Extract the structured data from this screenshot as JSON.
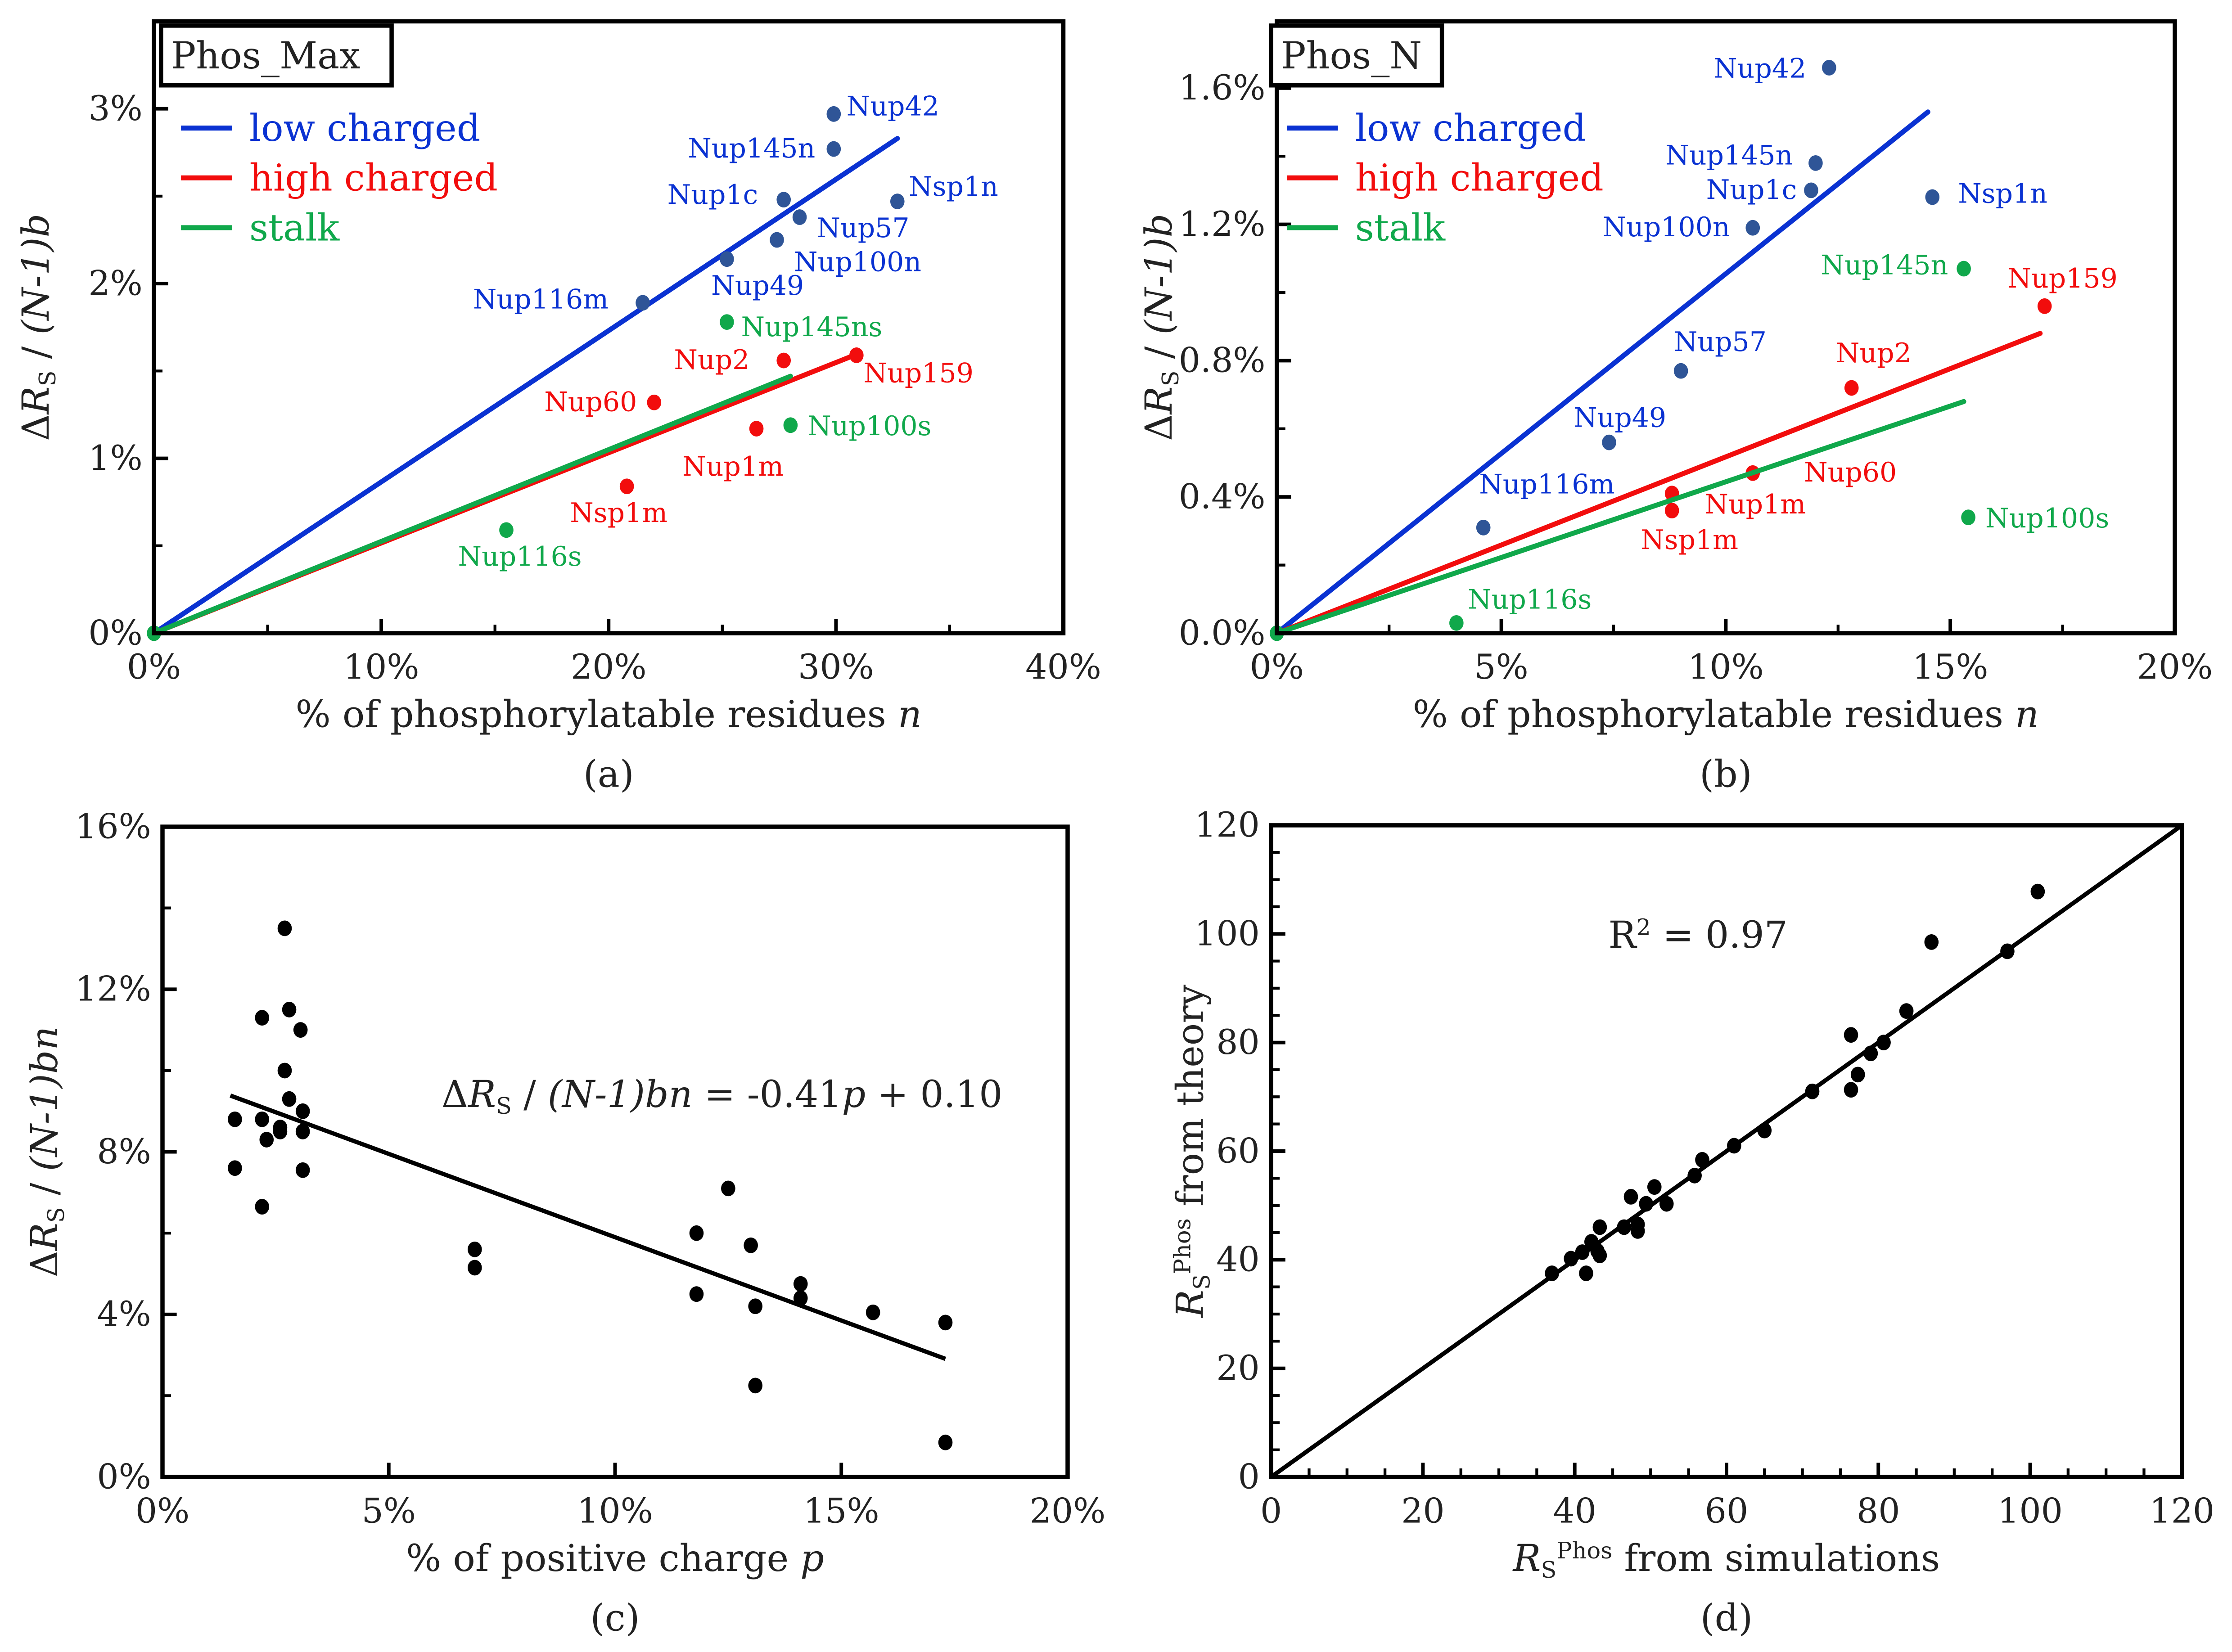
{
  "chart_data": [
    {
      "id": "a",
      "type": "scatter",
      "caption": "(a)",
      "title": "Phos_Max",
      "xlim": [
        0,
        40
      ],
      "ylim": [
        0,
        3.5
      ],
      "xticks": [
        0,
        10,
        20,
        30,
        40
      ],
      "xminor": 5,
      "yticks": [
        0,
        1,
        2,
        3
      ],
      "yminor": 0.5,
      "tick_suffix": "%",
      "xlabel_parts": [
        {
          "t": "% of phosphorylatable residues "
        },
        {
          "t": "n",
          "i": 1
        }
      ],
      "ylabel_parts": [
        {
          "t": "Δ"
        },
        {
          "t": "R",
          "i": 1
        },
        {
          "t": "S",
          "sub": 1
        },
        {
          "t": " / "
        },
        {
          "t": "(N-1)b",
          "i": 1
        }
      ],
      "legend": [
        {
          "label": "low charged",
          "color": "#0a32d2"
        },
        {
          "label": "high charged",
          "color": "#f20d0d"
        },
        {
          "label": "stalk",
          "color": "#10a84b"
        }
      ],
      "series": [
        {
          "name": "low charged",
          "color": "#0a32d2",
          "point_color": "#2f5597",
          "fit_end": [
            32.7,
            2.83
          ],
          "points": [
            {
              "name": "Nup42",
              "x": 29.9,
              "y": 2.97
            },
            {
              "name": "Nup145n",
              "x": 29.9,
              "y": 2.77
            },
            {
              "name": "Nup1c",
              "x": 27.7,
              "y": 2.48
            },
            {
              "name": "Nsp1n",
              "x": 32.7,
              "y": 2.47
            },
            {
              "name": "Nup57",
              "x": 28.4,
              "y": 2.38
            },
            {
              "name": "Nup100n",
              "x": 27.4,
              "y": 2.25
            },
            {
              "name": "Nup49",
              "x": 25.2,
              "y": 2.14
            },
            {
              "name": "Nup116m",
              "x": 21.5,
              "y": 1.89
            }
          ]
        },
        {
          "name": "high charged",
          "color": "#f20d0d",
          "point_color": "#f20d0d",
          "fit_end": [
            31.0,
            1.6
          ],
          "points": [
            {
              "name": "Nup2",
              "x": 27.7,
              "y": 1.56
            },
            {
              "name": "Nup159",
              "x": 30.9,
              "y": 1.59
            },
            {
              "name": "Nup60",
              "x": 22.0,
              "y": 1.32
            },
            {
              "name": "Nup1m",
              "x": 26.5,
              "y": 1.17
            },
            {
              "name": "Nsp1m",
              "x": 20.8,
              "y": 0.84
            }
          ]
        },
        {
          "name": "stalk",
          "color": "#10a84b",
          "point_color": "#10a84b",
          "fit_end": [
            28.0,
            1.47
          ],
          "points": [
            {
              "name": "Nup145ns",
              "x": 25.2,
              "y": 1.78
            },
            {
              "name": "Nup100s",
              "x": 28.0,
              "y": 1.19
            },
            {
              "name": "Nup116s",
              "x": 15.5,
              "y": 0.59
            },
            {
              "name": "",
              "x": 0,
              "y": 0
            }
          ]
        }
      ]
    },
    {
      "id": "b",
      "type": "scatter",
      "caption": "(b)",
      "title": "Phos_N",
      "xlim": [
        0,
        20
      ],
      "ylim": [
        0,
        1.796
      ],
      "xticks": [
        0,
        5,
        10,
        15,
        20
      ],
      "xminor": 2.5,
      "yticks": [
        0,
        0.4,
        0.8,
        1.2,
        1.6
      ],
      "yminor": 0.2,
      "tick_suffix": "%",
      "ytick_decimals": 1,
      "xlabel_parts": [
        {
          "t": "% of phosphorylatable residues "
        },
        {
          "t": "n",
          "i": 1
        }
      ],
      "ylabel_parts": [
        {
          "t": "Δ"
        },
        {
          "t": "R",
          "i": 1
        },
        {
          "t": "S",
          "sub": 1
        },
        {
          "t": " / "
        },
        {
          "t": "(N-1)b",
          "i": 1
        }
      ],
      "legend": [
        {
          "label": "low charged",
          "color": "#0a32d2"
        },
        {
          "label": "high charged",
          "color": "#f20d0d"
        },
        {
          "label": "stalk",
          "color": "#10a84b"
        }
      ],
      "series": [
        {
          "name": "low charged",
          "color": "#0a32d2",
          "point_color": "#2f5597",
          "fit_end": [
            14.5,
            1.53
          ],
          "points": [
            {
              "name": "Nup42",
              "x": 12.3,
              "y": 1.66
            },
            {
              "name": "Nup145n",
              "x": 12.0,
              "y": 1.38
            },
            {
              "name": "Nup1c",
              "x": 11.9,
              "y": 1.3
            },
            {
              "name": "Nsp1n",
              "x": 14.6,
              "y": 1.28
            },
            {
              "name": "Nup100n",
              "x": 10.6,
              "y": 1.19
            },
            {
              "name": "Nup57",
              "x": 9.0,
              "y": 0.77
            },
            {
              "name": "Nup49",
              "x": 7.4,
              "y": 0.56
            },
            {
              "name": "Nup116m",
              "x": 4.6,
              "y": 0.31
            }
          ]
        },
        {
          "name": "high charged",
          "color": "#f20d0d",
          "point_color": "#f20d0d",
          "fit_end": [
            17.0,
            0.88
          ],
          "points": [
            {
              "name": "Nup159",
              "x": 17.1,
              "y": 0.96
            },
            {
              "name": "Nup2",
              "x": 12.8,
              "y": 0.72
            },
            {
              "name": "Nup60",
              "x": 10.6,
              "y": 0.47
            },
            {
              "name": "Nup1m",
              "x": 8.8,
              "y": 0.41
            },
            {
              "name": "Nsp1m",
              "x": 8.8,
              "y": 0.36
            }
          ]
        },
        {
          "name": "stalk",
          "color": "#10a84b",
          "point_color": "#10a84b",
          "fit_end": [
            15.3,
            0.68
          ],
          "points": [
            {
              "name": "Nup145n",
              "x": 15.3,
              "y": 1.07
            },
            {
              "name": "Nup100s",
              "x": 15.4,
              "y": 0.34
            },
            {
              "name": "Nup116s",
              "x": 4.0,
              "y": 0.03
            },
            {
              "name": "",
              "x": 0,
              "y": 0
            }
          ]
        }
      ]
    },
    {
      "id": "c",
      "type": "scatter",
      "caption": "(c)",
      "xlim": [
        0,
        20
      ],
      "ylim": [
        0,
        16
      ],
      "xticks": [
        0,
        5,
        10,
        15,
        20
      ],
      "xminor": null,
      "yticks": [
        0,
        4,
        8,
        12,
        16
      ],
      "yminor": 2,
      "tick_suffix": "%",
      "xlabel_parts": [
        {
          "t": "% of positive charge "
        },
        {
          "t": "p",
          "i": 1
        }
      ],
      "ylabel_parts": [
        {
          "t": "Δ"
        },
        {
          "t": "R",
          "i": 1
        },
        {
          "t": "S",
          "sub": 1
        },
        {
          "t": " / "
        },
        {
          "t": "(N-1)bn",
          "i": 1
        }
      ],
      "annotation_parts": [
        {
          "t": "Δ"
        },
        {
          "t": "R",
          "i": 1
        },
        {
          "t": "S",
          "sub": 1
        },
        {
          "t": " / "
        },
        {
          "t": "(N-1)bn",
          "i": 1
        },
        {
          "t": " = -0.41"
        },
        {
          "t": "p",
          "i": 1
        },
        {
          "t": " + 0.10"
        }
      ],
      "fit": {
        "slope": -0.41,
        "intercept": 10,
        "x_range": [
          1.5,
          17.3
        ]
      },
      "series": [
        {
          "name": "data",
          "color": "#000",
          "points": [
            {
              "x": 1.6,
              "y": 8.8
            },
            {
              "x": 1.6,
              "y": 7.6
            },
            {
              "x": 2.2,
              "y": 8.8
            },
            {
              "x": 2.2,
              "y": 11.3
            },
            {
              "x": 2.2,
              "y": 6.65
            },
            {
              "x": 2.3,
              "y": 8.3
            },
            {
              "x": 2.6,
              "y": 8.5
            },
            {
              "x": 2.6,
              "y": 8.6
            },
            {
              "x": 2.7,
              "y": 13.5
            },
            {
              "x": 2.7,
              "y": 10.0
            },
            {
              "x": 2.8,
              "y": 11.5
            },
            {
              "x": 2.8,
              "y": 9.3
            },
            {
              "x": 3.05,
              "y": 11.0
            },
            {
              "x": 3.1,
              "y": 9.0
            },
            {
              "x": 3.1,
              "y": 8.5
            },
            {
              "x": 3.1,
              "y": 7.55
            },
            {
              "x": 6.9,
              "y": 5.6
            },
            {
              "x": 6.9,
              "y": 5.15
            },
            {
              "x": 11.8,
              "y": 6.0
            },
            {
              "x": 11.8,
              "y": 4.5
            },
            {
              "x": 12.5,
              "y": 7.1
            },
            {
              "x": 13.0,
              "y": 5.7
            },
            {
              "x": 13.1,
              "y": 4.2
            },
            {
              "x": 13.1,
              "y": 2.25
            },
            {
              "x": 14.1,
              "y": 4.75
            },
            {
              "x": 14.1,
              "y": 4.4
            },
            {
              "x": 15.7,
              "y": 4.05
            },
            {
              "x": 17.3,
              "y": 3.8
            },
            {
              "x": 17.3,
              "y": 0.85
            }
          ]
        }
      ]
    },
    {
      "id": "d",
      "type": "scatter",
      "caption": "(d)",
      "xlim": [
        0,
        120
      ],
      "ylim": [
        0,
        120
      ],
      "xticks": [
        0,
        20,
        40,
        60,
        80,
        100,
        120
      ],
      "xminor": 5,
      "yticks": [
        0,
        20,
        40,
        60,
        80,
        100,
        120
      ],
      "yminor": 5,
      "tick_suffix": "",
      "xlabel_parts": [
        {
          "t": "R",
          "i": 1
        },
        {
          "t": "S",
          "sub": 1
        },
        {
          "t": "Phos",
          "sup": 1
        },
        {
          "t": " from simulations"
        }
      ],
      "ylabel_parts": [
        {
          "t": "R",
          "i": 1
        },
        {
          "t": "S",
          "sub": 1
        },
        {
          "t": "Phos",
          "sup": 1
        },
        {
          "t": " from theory"
        }
      ],
      "annotation_parts": [
        {
          "t": "R"
        },
        {
          "t": "2",
          "sup": 1
        },
        {
          "t": " = 0.97"
        }
      ],
      "fit": {
        "slope": 1,
        "intercept": 0,
        "x_range": [
          0,
          120
        ]
      },
      "series": [
        {
          "name": "data",
          "color": "#000",
          "points": [
            {
              "x": 37,
              "y": 37.5
            },
            {
              "x": 39.5,
              "y": 40.2
            },
            {
              "x": 41,
              "y": 41.4
            },
            {
              "x": 41.5,
              "y": 37.5
            },
            {
              "x": 42.2,
              "y": 43.3
            },
            {
              "x": 43.3,
              "y": 46
            },
            {
              "x": 43.3,
              "y": 40.8
            },
            {
              "x": 43,
              "y": 41.6
            },
            {
              "x": 46.5,
              "y": 46
            },
            {
              "x": 47.4,
              "y": 51.6
            },
            {
              "x": 48.3,
              "y": 45.3
            },
            {
              "x": 48.3,
              "y": 46.5
            },
            {
              "x": 49.4,
              "y": 50.3
            },
            {
              "x": 50.5,
              "y": 53.4
            },
            {
              "x": 52.1,
              "y": 50.3
            },
            {
              "x": 55.8,
              "y": 55.5
            },
            {
              "x": 56.8,
              "y": 58.4
            },
            {
              "x": 61,
              "y": 61
            },
            {
              "x": 65,
              "y": 63.8
            },
            {
              "x": 71.3,
              "y": 71
            },
            {
              "x": 76.4,
              "y": 81.4
            },
            {
              "x": 76.4,
              "y": 71.3
            },
            {
              "x": 77.3,
              "y": 74.1
            },
            {
              "x": 79,
              "y": 78
            },
            {
              "x": 80.7,
              "y": 80
            },
            {
              "x": 83.7,
              "y": 85.8
            },
            {
              "x": 87,
              "y": 98.5
            },
            {
              "x": 97,
              "y": 96.8
            },
            {
              "x": 101,
              "y": 107.8
            }
          ]
        }
      ]
    }
  ]
}
